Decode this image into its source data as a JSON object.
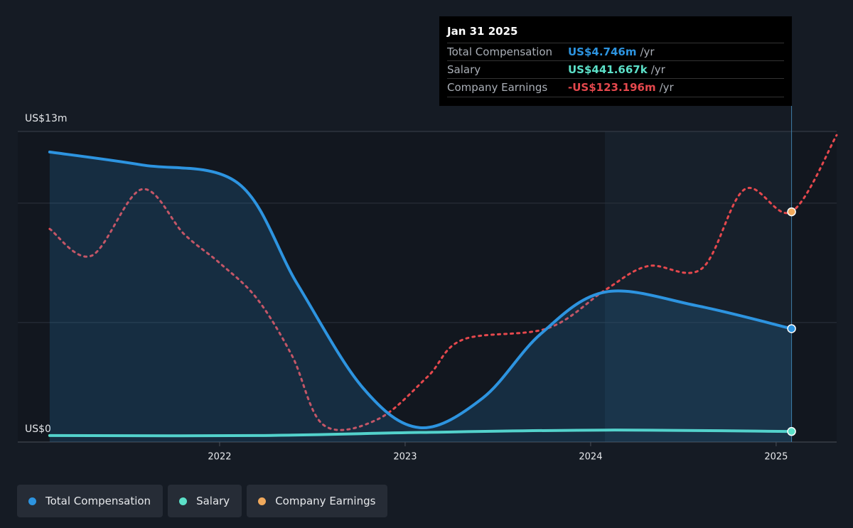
{
  "chart_data": {
    "type": "line",
    "xlim": [
      2020.912,
      2025.326
    ],
    "xticks": [
      2022,
      2023,
      2024,
      2025
    ],
    "ylim": [
      0,
      13
    ],
    "yticks": [
      {
        "value": 0,
        "label": "US$0"
      },
      {
        "value": 13,
        "label": "US$13m"
      }
    ],
    "ygrid": [
      5,
      10
    ],
    "y2lim": [
      -161,
      -110
    ],
    "series": [
      {
        "name": "Total Compensation",
        "color": "#2d94e0",
        "fill": true,
        "x": [
          2021.084,
          2021.58,
          2022.1,
          2022.42,
          2022.77,
          2023.08,
          2023.42,
          2023.73,
          2024.08,
          2024.57,
          2025.083
        ],
        "values": [
          12.14,
          11.6,
          10.83,
          6.6,
          2.29,
          0.6,
          1.85,
          4.52,
          6.28,
          5.71,
          4.746
        ]
      },
      {
        "name": "Salary",
        "color": "#5ce0c8",
        "x": [
          2021.084,
          2022.2,
          2023.08,
          2024.08,
          2025.083
        ],
        "values": [
          0.27,
          0.27,
          0.4,
          0.5,
          0.441667
        ]
      },
      {
        "name": "Company Earnings",
        "color": "#f0a95c",
        "line_color": "#e5484d",
        "dashed": true,
        "axis": "y2",
        "x": [
          2021.084,
          2021.31,
          2021.58,
          2021.81,
          2022.0,
          2022.2,
          2022.39,
          2022.56,
          2022.85,
          2023.12,
          2023.31,
          2023.77,
          2024.08,
          2024.31,
          2024.6,
          2024.83,
          2025.083,
          2025.326
        ],
        "values": [
          -126.0,
          -130.4,
          -119.5,
          -126.9,
          -131.6,
          -137.4,
          -146.8,
          -158.2,
          -157.3,
          -150.3,
          -144.2,
          -142.3,
          -136.0,
          -132.1,
          -132.5,
          -119.5,
          -123.196,
          -110.6
        ]
      }
    ],
    "tooltip": {
      "title": "Jan 31 2025",
      "unit": "/yr",
      "labels": [
        "US$4.746m",
        "US$441.667k",
        "-US$123.196m"
      ]
    }
  }
}
